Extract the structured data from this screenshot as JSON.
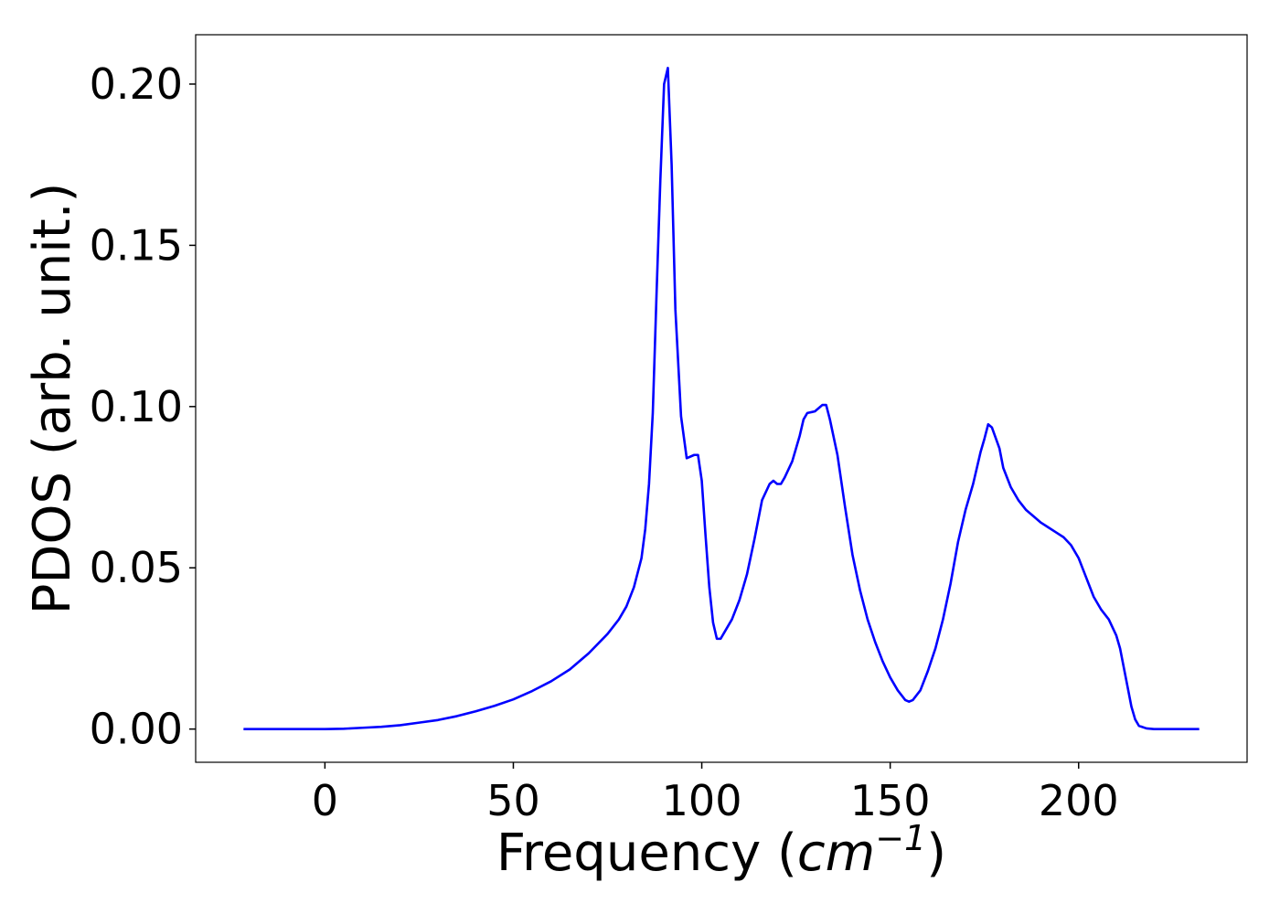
{
  "chart_data": {
    "type": "line",
    "xlabel": [
      "Frequency (",
      "cm",
      "−1",
      ")"
    ],
    "ylabel": "PDOS (arb. unit.)",
    "xlim": [
      -34.3,
      244.7
    ],
    "ylim": [
      -0.0103,
      0.2153
    ],
    "xticks": [
      0,
      50,
      100,
      150,
      200
    ],
    "yticks": [
      {
        "value": 0,
        "label": "0.00"
      },
      {
        "value": 0.05,
        "label": "0.05"
      },
      {
        "value": 0.1,
        "label": "0.10"
      },
      {
        "value": 0.15,
        "label": "0.15"
      },
      {
        "value": 0.2,
        "label": "0.20"
      }
    ],
    "grid": false,
    "series": [
      {
        "color": "#0000ff",
        "x": [
          -21.6,
          -10,
          0,
          5,
          10,
          15,
          20,
          25,
          30,
          35,
          40,
          45,
          50,
          55,
          60,
          65,
          70,
          75,
          78,
          80,
          82,
          84,
          85,
          86,
          87,
          88,
          89,
          90,
          91,
          92,
          93,
          94.5,
          96,
          98,
          99,
          100,
          101,
          102,
          103,
          104,
          105,
          106,
          108,
          110,
          112,
          114,
          116,
          118,
          119,
          120,
          121,
          122,
          124,
          126,
          127,
          128,
          130,
          131,
          132,
          133,
          134,
          136,
          138,
          140,
          142,
          144,
          146,
          148,
          150,
          152,
          154,
          155,
          156,
          158,
          160,
          162,
          164,
          166,
          168,
          170,
          172,
          174,
          175,
          176,
          177,
          179,
          180,
          182,
          184,
          186,
          188,
          190,
          192,
          194,
          196,
          198,
          200,
          202,
          204,
          206,
          208,
          210,
          211,
          212,
          213,
          214,
          215,
          216,
          218,
          220,
          232
        ],
        "values": [
          0,
          0,
          0,
          0.0001,
          0.0004,
          0.0007,
          0.0012,
          0.002,
          0.0028,
          0.004,
          0.0055,
          0.0072,
          0.0092,
          0.0118,
          0.0148,
          0.0185,
          0.0235,
          0.0295,
          0.034,
          0.038,
          0.044,
          0.053,
          0.062,
          0.076,
          0.098,
          0.135,
          0.17,
          0.2,
          0.205,
          0.175,
          0.13,
          0.097,
          0.084,
          0.085,
          0.085,
          0.077,
          0.06,
          0.044,
          0.033,
          0.028,
          0.028,
          0.03,
          0.034,
          0.04,
          0.048,
          0.059,
          0.071,
          0.076,
          0.077,
          0.076,
          0.076,
          0.078,
          0.083,
          0.091,
          0.096,
          0.098,
          0.0985,
          0.0995,
          0.1005,
          0.1005,
          0.096,
          0.085,
          0.069,
          0.054,
          0.043,
          0.034,
          0.027,
          0.021,
          0.016,
          0.012,
          0.009,
          0.0085,
          0.009,
          0.012,
          0.018,
          0.025,
          0.034,
          0.045,
          0.058,
          0.068,
          0.076,
          0.086,
          0.09,
          0.0945,
          0.0935,
          0.087,
          0.081,
          0.075,
          0.071,
          0.068,
          0.066,
          0.064,
          0.0625,
          0.061,
          0.0595,
          0.057,
          0.053,
          0.047,
          0.041,
          0.037,
          0.034,
          0.029,
          0.025,
          0.019,
          0.013,
          0.007,
          0.003,
          0.001,
          0.0002,
          0,
          0
        ]
      }
    ]
  }
}
